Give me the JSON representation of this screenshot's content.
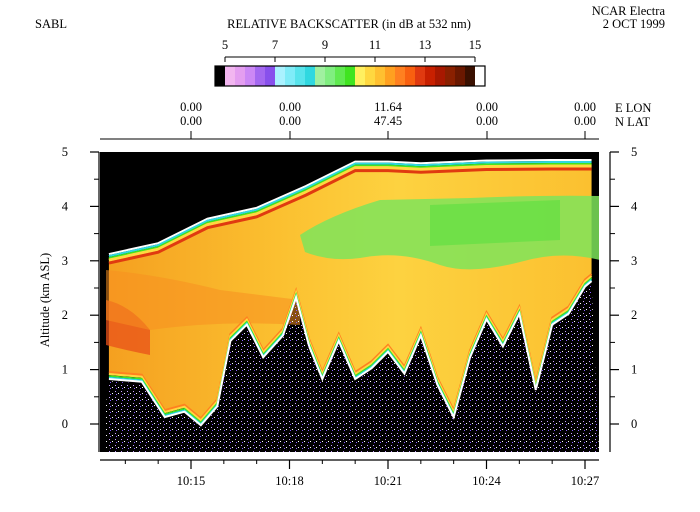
{
  "header": {
    "instrument": "SABL",
    "title": "RELATIVE BACKSCATTER (in dB at 532 nm)",
    "platform": "NCAR Electra",
    "date": "2 OCT 1999"
  },
  "colorbar": {
    "tick_labels": [
      "5",
      "7",
      "9",
      "11",
      "13",
      "15"
    ],
    "range": [
      5,
      15
    ],
    "colors": [
      "#000000",
      "#f2b6f0",
      "#e49ef0",
      "#cc88f5",
      "#a468f0",
      "#8850ec",
      "#aaf2ff",
      "#80ecf8",
      "#58e4ec",
      "#30d8e0",
      "#a0f0a0",
      "#80ee80",
      "#60ea50",
      "#40e420",
      "#fff060",
      "#ffd840",
      "#ffc030",
      "#ffa020",
      "#ff8020",
      "#f86010",
      "#e03a10",
      "#c82000",
      "#a81800",
      "#8a2000",
      "#6a1800",
      "#3a1000",
      "#ffffff"
    ]
  },
  "geo_axis": {
    "lon_label": "E LON",
    "lat_label": "N LAT",
    "lon_values": [
      "0.00",
      "0.00",
      "11.64",
      "0.00",
      "0.00"
    ],
    "lat_values": [
      "0.00",
      "0.00",
      "47.45",
      "0.00",
      "0.00"
    ]
  },
  "chart_data": {
    "type": "heatmap",
    "title": "RELATIVE BACKSCATTER (in dB at 532 nm)",
    "ylabel": "Altitude (km ASL)",
    "xlabel": "",
    "x_ticks": [
      "10:15",
      "10:18",
      "10:21",
      "10:24",
      "10:27"
    ],
    "y_ticks": [
      0,
      1,
      2,
      3,
      4,
      5
    ],
    "ylim": [
      -0.5,
      5
    ],
    "xlim_min": [
      12.3,
      27.3
    ],
    "value_range_db": [
      5,
      15
    ],
    "aircraft_altitude_km": {
      "t_min": [
        12.5,
        14,
        15.5,
        17,
        18.5,
        20,
        21,
        22,
        24,
        26,
        27.2
      ],
      "alt": [
        3.05,
        3.25,
        3.7,
        3.9,
        4.3,
        4.75,
        4.75,
        4.72,
        4.77,
        4.78,
        4.78
      ]
    },
    "boundary_layer_top_km": {
      "t_min": [
        12.5,
        13.5,
        14.2,
        14.8,
        15.3,
        15.8,
        16.2,
        16.7,
        17.2,
        17.8,
        18.2,
        18.6,
        19.0,
        19.5,
        20.0,
        20.5,
        21.0,
        21.5,
        22.0,
        22.5,
        23.0,
        23.5,
        24.0,
        24.5,
        25.0,
        25.5,
        26.0,
        26.5,
        27.0,
        27.2
      ],
      "alt": [
        0.9,
        0.85,
        0.2,
        0.3,
        0.05,
        0.4,
        1.6,
        1.9,
        1.3,
        1.7,
        2.4,
        1.5,
        0.9,
        1.6,
        0.9,
        1.1,
        1.4,
        1.0,
        1.7,
        0.8,
        0.2,
        1.3,
        2.0,
        1.5,
        2.1,
        0.7,
        1.9,
        2.1,
        2.6,
        2.7
      ]
    }
  }
}
